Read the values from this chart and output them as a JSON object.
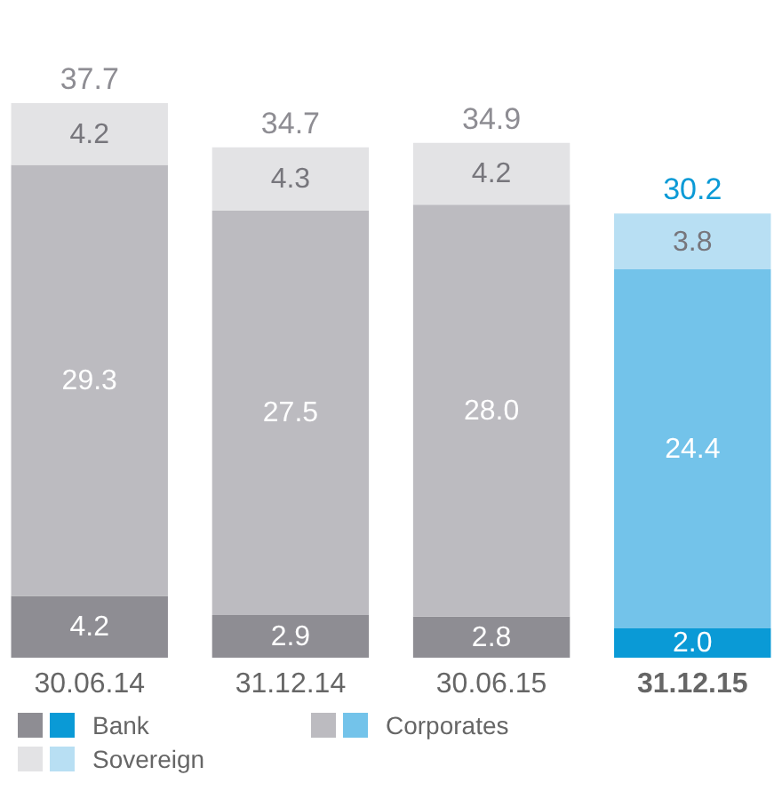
{
  "chart_data": {
    "type": "bar",
    "stacked": true,
    "legend": "bottom",
    "categories": [
      "30.06.14",
      "31.12.14",
      "30.06.15",
      "31.12.15"
    ],
    "series": [
      {
        "name": "Bank",
        "colors": [
          "#8e8d93",
          "#8e8d93",
          "#8e8d93",
          "#0a9ad6"
        ],
        "values": [
          4.2,
          2.9,
          2.8,
          2.0
        ],
        "value_labels": [
          "4.2",
          "2.9",
          "2.8",
          "2.0"
        ]
      },
      {
        "name": "Corporates",
        "colors": [
          "#bcbbc0",
          "#bcbbc0",
          "#bcbbc0",
          "#73c3ea"
        ],
        "values": [
          29.3,
          27.5,
          28.0,
          24.4
        ],
        "value_labels": [
          "29.3",
          "27.5",
          "28.0",
          "24.4"
        ]
      },
      {
        "name": "Sovereign",
        "colors": [
          "#e3e3e5",
          "#e3e3e5",
          "#e3e3e5",
          "#b8dff3"
        ],
        "values": [
          4.2,
          4.3,
          4.2,
          3.8
        ],
        "value_labels": [
          "4.2",
          "4.3",
          "4.2",
          "3.8"
        ]
      }
    ],
    "totals": [
      "37.7",
      "34.7",
      "34.9",
      "30.2"
    ]
  }
}
